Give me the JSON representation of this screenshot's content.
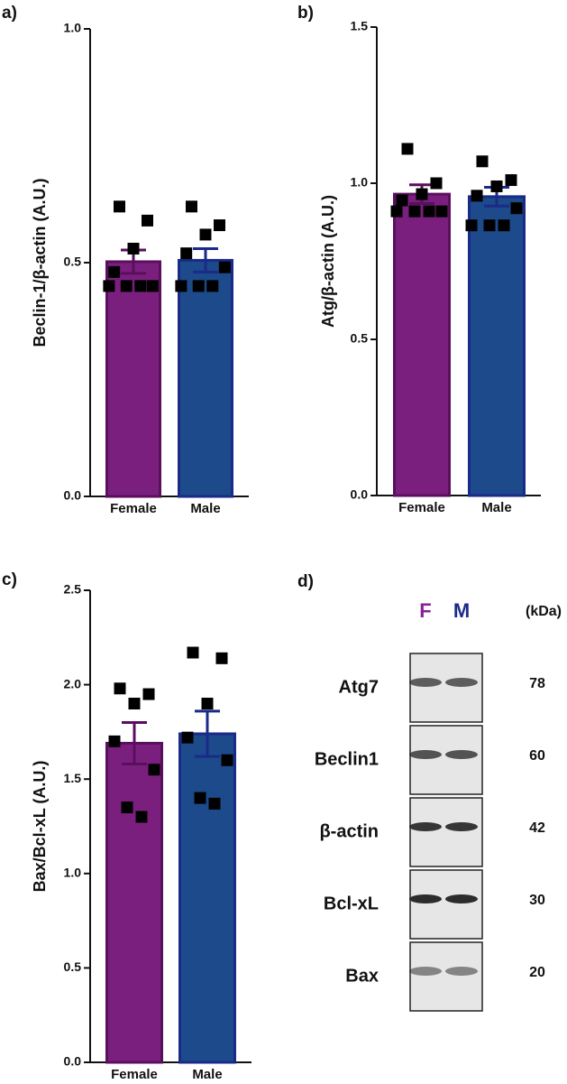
{
  "chart_data": [
    {
      "type": "bar",
      "panel": "a)",
      "ylabel": "Beclin-1/β-actin (A.U.)",
      "categories": [
        "Female",
        "Male"
      ],
      "values": [
        0.502,
        0.505
      ],
      "errors": [
        0.025,
        0.025
      ],
      "colors": [
        "#7b1f7f",
        "#1c4a8a"
      ],
      "edge_colors": [
        "#5a0f5e",
        "#1a2a88"
      ],
      "points": [
        [
          0.62,
          0.59,
          0.53,
          0.48,
          0.45,
          0.45,
          0.45,
          0.45
        ],
        [
          0.62,
          0.58,
          0.56,
          0.52,
          0.49,
          0.45,
          0.45,
          0.45
        ]
      ],
      "ylim": [
        0,
        1
      ],
      "yticks": [
        {
          "value": 0,
          "label": "0.0"
        },
        0.5,
        {
          "value": 1,
          "label": "1.0"
        }
      ]
    },
    {
      "type": "bar",
      "panel": "b)",
      "ylabel": "Atg/β-actin (A.U.)",
      "categories": [
        "Female",
        "Male"
      ],
      "values": [
        0.965,
        0.957
      ],
      "errors": [
        0.03,
        0.03
      ],
      "colors": [
        "#7b1f7f",
        "#1c4a8a"
      ],
      "edge_colors": [
        "#5a0f5e",
        "#1a2a88"
      ],
      "points": [
        [
          1.11,
          1.0,
          0.965,
          0.945,
          0.91,
          0.91,
          0.91,
          0.91
        ],
        [
          1.07,
          1.01,
          0.99,
          0.96,
          0.92,
          0.865,
          0.865,
          0.865
        ]
      ],
      "ylim": [
        0,
        1.5
      ],
      "yticks": [
        {
          "value": 0,
          "label": "0.0"
        },
        0.5,
        {
          "value": 1,
          "label": "1.0"
        },
        1.5
      ]
    },
    {
      "type": "bar",
      "panel": "c)",
      "ylabel": "Bax/Bcl-xL (A.U.)",
      "categories": [
        "Female",
        "Male"
      ],
      "values": [
        1.69,
        1.74
      ],
      "errors": [
        0.11,
        0.12
      ],
      "colors": [
        "#7b1f7f",
        "#1c4a8a"
      ],
      "edge_colors": [
        "#5a0f5e",
        "#1a2a88"
      ],
      "points": [
        [
          1.98,
          1.95,
          1.9,
          1.7,
          1.55,
          1.35,
          1.3
        ],
        [
          2.17,
          2.14,
          1.9,
          1.72,
          1.6,
          1.4,
          1.37
        ]
      ],
      "ylim": [
        0,
        2.5
      ],
      "yticks": [
        {
          "value": 0,
          "label": "0.0"
        },
        0.5,
        {
          "value": 1,
          "label": "1.0"
        },
        1.5,
        {
          "value": 2,
          "label": "2.0"
        },
        2.5
      ]
    }
  ],
  "blot": {
    "panel": "d)",
    "lanes": [
      "F",
      "M"
    ],
    "unit": "(kDa)",
    "rows": [
      {
        "protein": "Atg7",
        "kda": "78"
      },
      {
        "protein": "Beclin1",
        "kda": "60"
      },
      {
        "protein": "β-actin",
        "kda": "42"
      },
      {
        "protein": "Bcl-xL",
        "kda": "30"
      },
      {
        "protein": "Bax",
        "kda": "20"
      }
    ]
  }
}
